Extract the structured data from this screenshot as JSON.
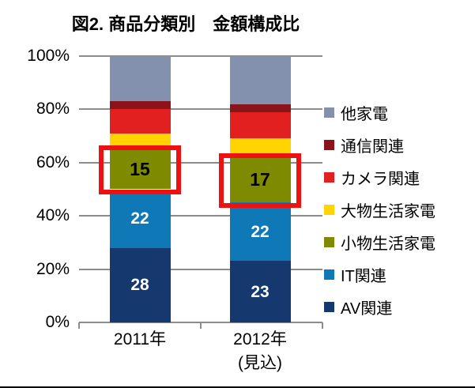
{
  "title": "図2. 商品分類別　金額構成比",
  "chart_data": {
    "type": "bar",
    "stacked": true,
    "unit": "%",
    "title": "図2. 商品分類別　金額構成比",
    "categories": [
      [
        "2011年"
      ],
      [
        "2012年",
        "(見込)"
      ]
    ],
    "series": [
      {
        "name": "AV関連",
        "color": "#15386e",
        "values": [
          28,
          23
        ],
        "show_labels": true,
        "label_color": "#ffffff",
        "highlighted": false
      },
      {
        "name": "IT関連",
        "color": "#0f79b7",
        "values": [
          22,
          22
        ],
        "show_labels": true,
        "label_color": "#ffffff",
        "highlighted": false
      },
      {
        "name": "小物生活家電",
        "color": "#7e8a00",
        "values": [
          15,
          17
        ],
        "show_labels": true,
        "label_color": "#000000",
        "highlighted": true
      },
      {
        "name": "大物生活家電",
        "color": "#ffd400",
        "values": [
          6,
          7
        ],
        "show_labels": false,
        "highlighted": false
      },
      {
        "name": "カメラ関連",
        "color": "#e32020",
        "values": [
          9,
          10
        ],
        "show_labels": false,
        "highlighted": false
      },
      {
        "name": "通信関連",
        "color": "#8b141a",
        "values": [
          3,
          3
        ],
        "show_labels": false,
        "highlighted": false
      },
      {
        "name": "他家電",
        "color": "#8390ae",
        "values": [
          17,
          18
        ],
        "show_labels": false,
        "highlighted": false
      }
    ],
    "ylim": [
      0,
      100
    ],
    "yticks": [
      "0%",
      "20%",
      "40%",
      "60%",
      "80%",
      "100%"
    ],
    "grid": true,
    "gridline_color": "#8c8c8c",
    "legend_position": "right",
    "legend_order_top_to_bottom": [
      "他家電",
      "通信関連",
      "カメラ関連",
      "大物生活家電",
      "小物生活家電",
      "IT関連",
      "AV関連"
    ],
    "highlight_color": "#ee1111",
    "highlighted_segment_values": {
      "2011年": 15,
      "2012年(見込)": 17
    }
  }
}
